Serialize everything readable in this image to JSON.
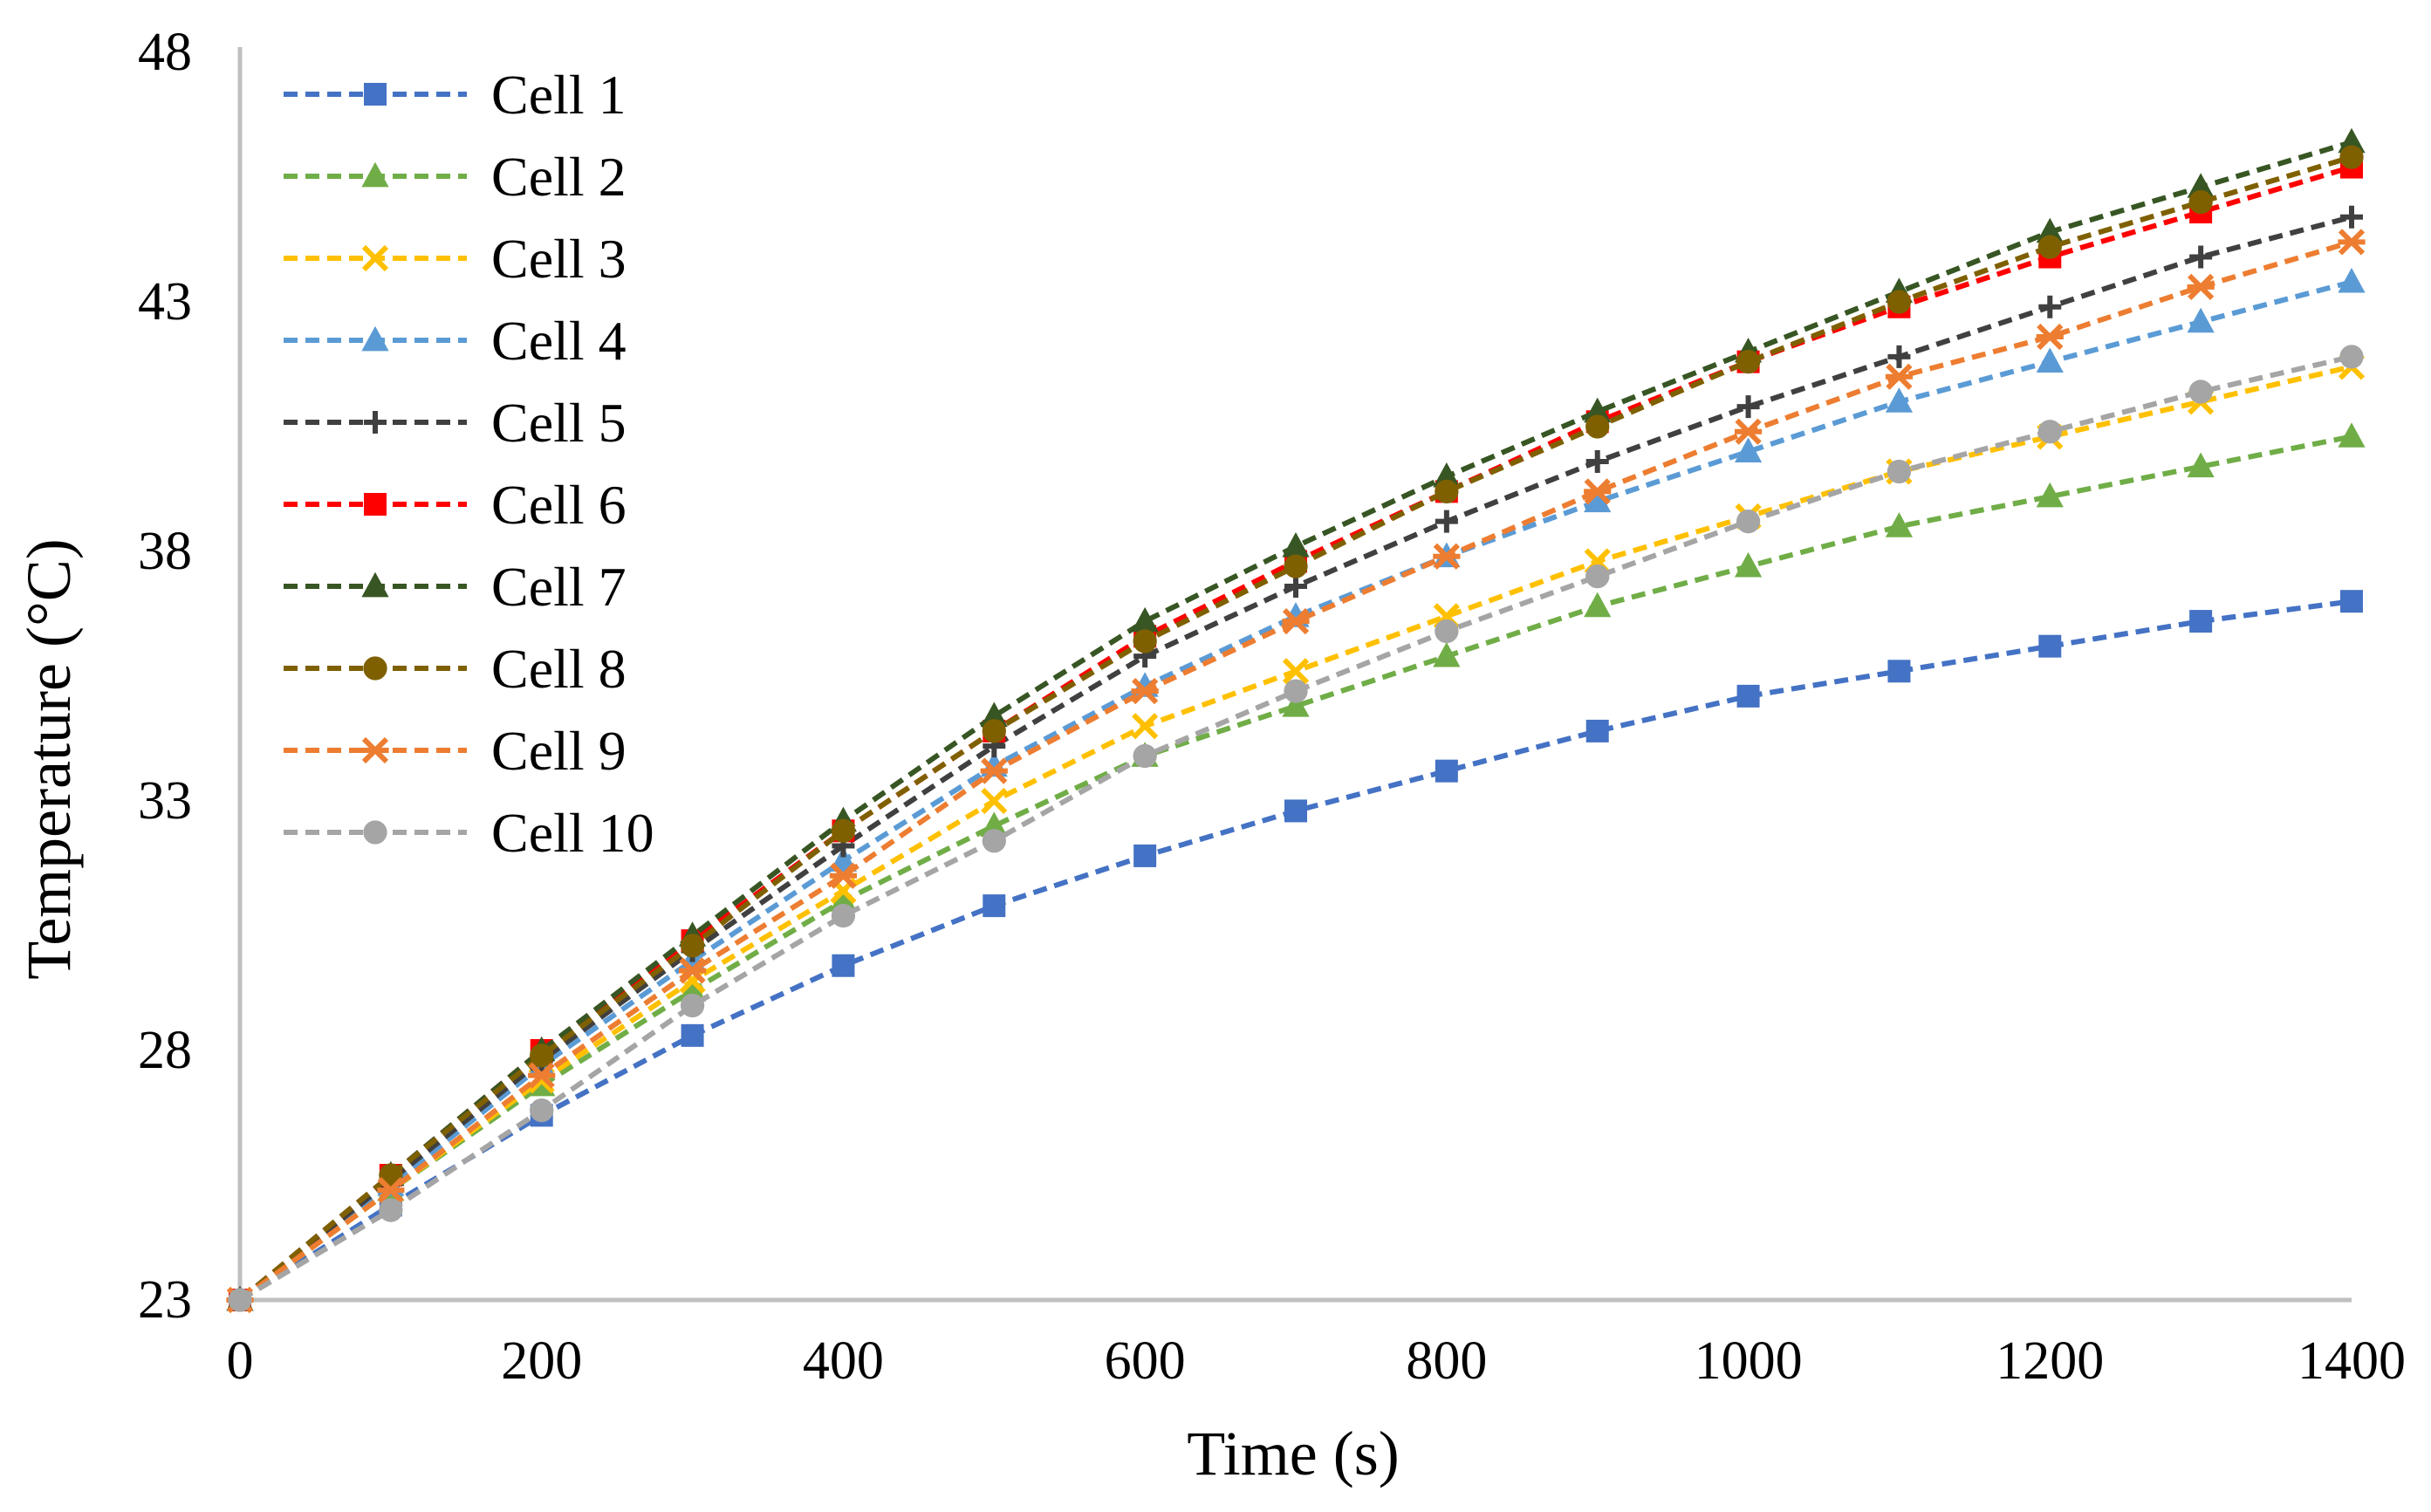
{
  "chart_data": {
    "type": "line",
    "title": "",
    "xlabel": "Time (s)",
    "ylabel": "Temperature (°C)",
    "xlim": [
      0,
      1400
    ],
    "ylim": [
      23,
      48
    ],
    "x_ticks": [
      0,
      200,
      400,
      600,
      800,
      1000,
      1200,
      1400
    ],
    "x_tick_labels": [
      "0",
      "200",
      "400",
      "600",
      "800",
      "1000",
      "1200",
      "1400"
    ],
    "y_ticks": [
      23,
      28,
      33,
      38,
      43,
      48
    ],
    "y_tick_labels": [
      "23",
      "28",
      "33",
      "38",
      "43",
      "48"
    ],
    "grid": false,
    "legend_position": "top-left",
    "x": [
      0,
      100,
      200,
      300,
      400,
      500,
      600,
      700,
      800,
      900,
      1000,
      1100,
      1200,
      1300,
      1400
    ],
    "series": [
      {
        "name": "Cell 1",
        "color": "#4472C4",
        "marker": "square",
        "values": [
          23.0,
          24.9,
          26.7,
          28.3,
          29.7,
          30.9,
          31.9,
          32.8,
          33.6,
          34.4,
          35.1,
          35.6,
          36.1,
          36.6,
          37.0
        ]
      },
      {
        "name": "Cell 2",
        "color": "#70AD47",
        "marker": "triangle",
        "values": [
          23.0,
          25.2,
          27.3,
          29.2,
          31.0,
          32.5,
          33.9,
          34.9,
          35.9,
          36.9,
          37.7,
          38.5,
          39.1,
          39.7,
          40.3
        ]
      },
      {
        "name": "Cell 3",
        "color": "#FFC000",
        "marker": "x",
        "values": [
          23.0,
          25.2,
          27.4,
          29.4,
          31.2,
          33.0,
          34.5,
          35.6,
          36.7,
          37.8,
          38.7,
          39.6,
          40.3,
          41.0,
          41.7
        ]
      },
      {
        "name": "Cell 4",
        "color": "#5B9BD5",
        "marker": "triangle",
        "values": [
          23.0,
          25.3,
          27.7,
          29.8,
          31.8,
          33.7,
          35.3,
          36.7,
          37.9,
          39.0,
          40.0,
          41.0,
          41.8,
          42.6,
          43.4
        ]
      },
      {
        "name": "Cell 5",
        "color": "#404040",
        "marker": "plus",
        "values": [
          23.0,
          25.4,
          27.8,
          30.0,
          32.1,
          34.1,
          35.9,
          37.3,
          38.6,
          39.8,
          40.9,
          41.9,
          42.9,
          43.9,
          44.7
        ]
      },
      {
        "name": "Cell 6",
        "color": "#FF0000",
        "marker": "square",
        "values": [
          23.0,
          25.5,
          28.0,
          30.2,
          32.4,
          34.4,
          36.3,
          37.8,
          39.2,
          40.6,
          41.8,
          42.9,
          43.9,
          44.8,
          45.7
        ]
      },
      {
        "name": "Cell 7",
        "color": "#375623",
        "marker": "triangle",
        "values": [
          23.0,
          25.5,
          28.0,
          30.3,
          32.6,
          34.7,
          36.6,
          38.1,
          39.5,
          40.8,
          42.0,
          43.2,
          44.4,
          45.3,
          46.2
        ]
      },
      {
        "name": "Cell 8",
        "color": "#7F6000",
        "marker": "circle",
        "values": [
          23.0,
          25.5,
          27.9,
          30.1,
          32.4,
          34.4,
          36.2,
          37.7,
          39.2,
          40.5,
          41.8,
          43.0,
          44.1,
          45.0,
          45.9
        ]
      },
      {
        "name": "Cell 9",
        "color": "#ED7D31",
        "marker": "star",
        "values": [
          23.0,
          25.2,
          27.5,
          29.6,
          31.5,
          33.6,
          35.2,
          36.6,
          37.9,
          39.2,
          40.4,
          41.5,
          42.3,
          43.3,
          44.2
        ]
      },
      {
        "name": "Cell 10",
        "color": "#A5A5A5",
        "marker": "circle",
        "values": [
          23.0,
          24.8,
          26.8,
          28.9,
          30.7,
          32.2,
          33.9,
          35.2,
          36.4,
          37.5,
          38.6,
          39.6,
          40.4,
          41.2,
          41.9
        ]
      }
    ]
  }
}
